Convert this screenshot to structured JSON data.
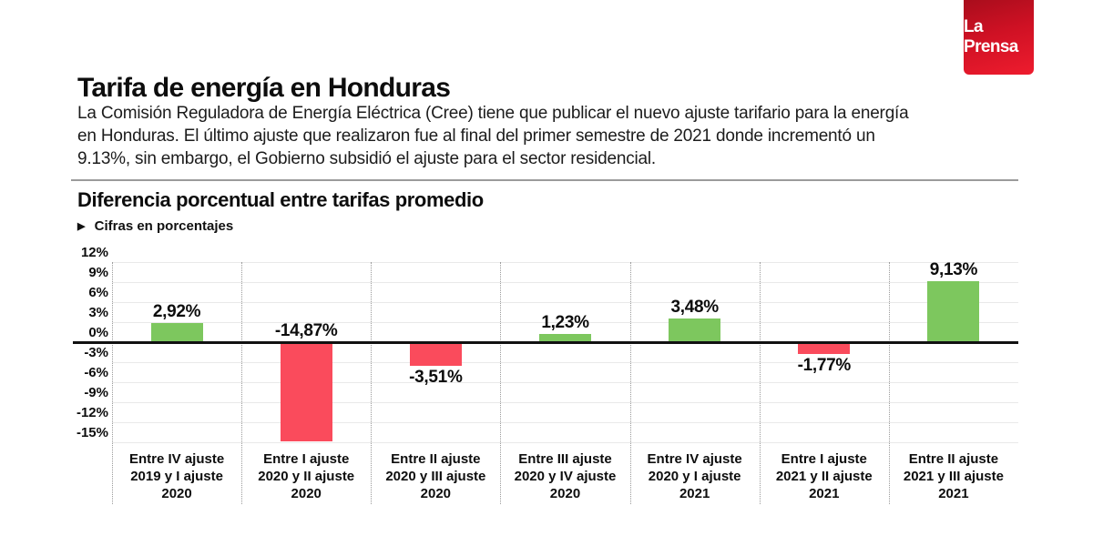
{
  "logo": {
    "text": "La Prensa"
  },
  "header": {
    "title": "Tarifa de energía en Honduras",
    "intro_lines": [
      "La Comisión Reguladora de Energía Eléctrica (Cree) tiene que publicar el nuevo ajuste tarifario para la energía",
      "en Honduras. El último ajuste que realizaron fue al final del primer semestre de 2021 donde incrementó un",
      "9.13%, sin embargo, el Gobierno subsidió el ajuste para el sector residencial."
    ]
  },
  "chart_data": {
    "type": "bar",
    "title": "Diferencia porcentual entre tarifas promedio",
    "subtitle": "Cifras en porcentajes",
    "kicker_icon": "▶",
    "categories": [
      "Entre IV ajuste\n2019 y I ajuste\n2020",
      "Entre I ajuste\n2020 y II ajuste\n2020",
      "Entre II ajuste\n2020 y III ajuste\n2020",
      "Entre III ajuste\n2020 y IV ajuste\n2020",
      "Entre IV ajuste\n2020 y I ajuste\n2021",
      "Entre I ajuste\n2021 y II ajuste\n2021",
      "Entre II ajuste\n2021 y III ajuste\n2021"
    ],
    "values": [
      2.92,
      -14.87,
      -3.51,
      1.23,
      3.48,
      -1.77,
      9.13
    ],
    "value_labels": [
      "2,92%",
      "-14,87%",
      "-3,51%",
      "1,23%",
      "3,48%",
      "-1,77%",
      "9,13%"
    ],
    "ytick_values": [
      12,
      9,
      6,
      3,
      0,
      -3,
      -6,
      -9,
      -12,
      -15
    ],
    "ytick_labels": [
      "12%",
      "9%",
      "6%",
      "3%",
      "0%",
      "-3%",
      "-6%",
      "-9%",
      "-12%",
      "-15%"
    ],
    "ylim": [
      -15,
      12
    ],
    "xlabel": "",
    "ylabel": "Cifras en porcentajes",
    "grid": "horizontal light gray lines each 3%, dotted vertical column separators, thick black zero line",
    "legend": "none",
    "colors": {
      "positive": "#7dc75e",
      "negative": "#fa4b5c",
      "zero_line": "#111111"
    }
  }
}
